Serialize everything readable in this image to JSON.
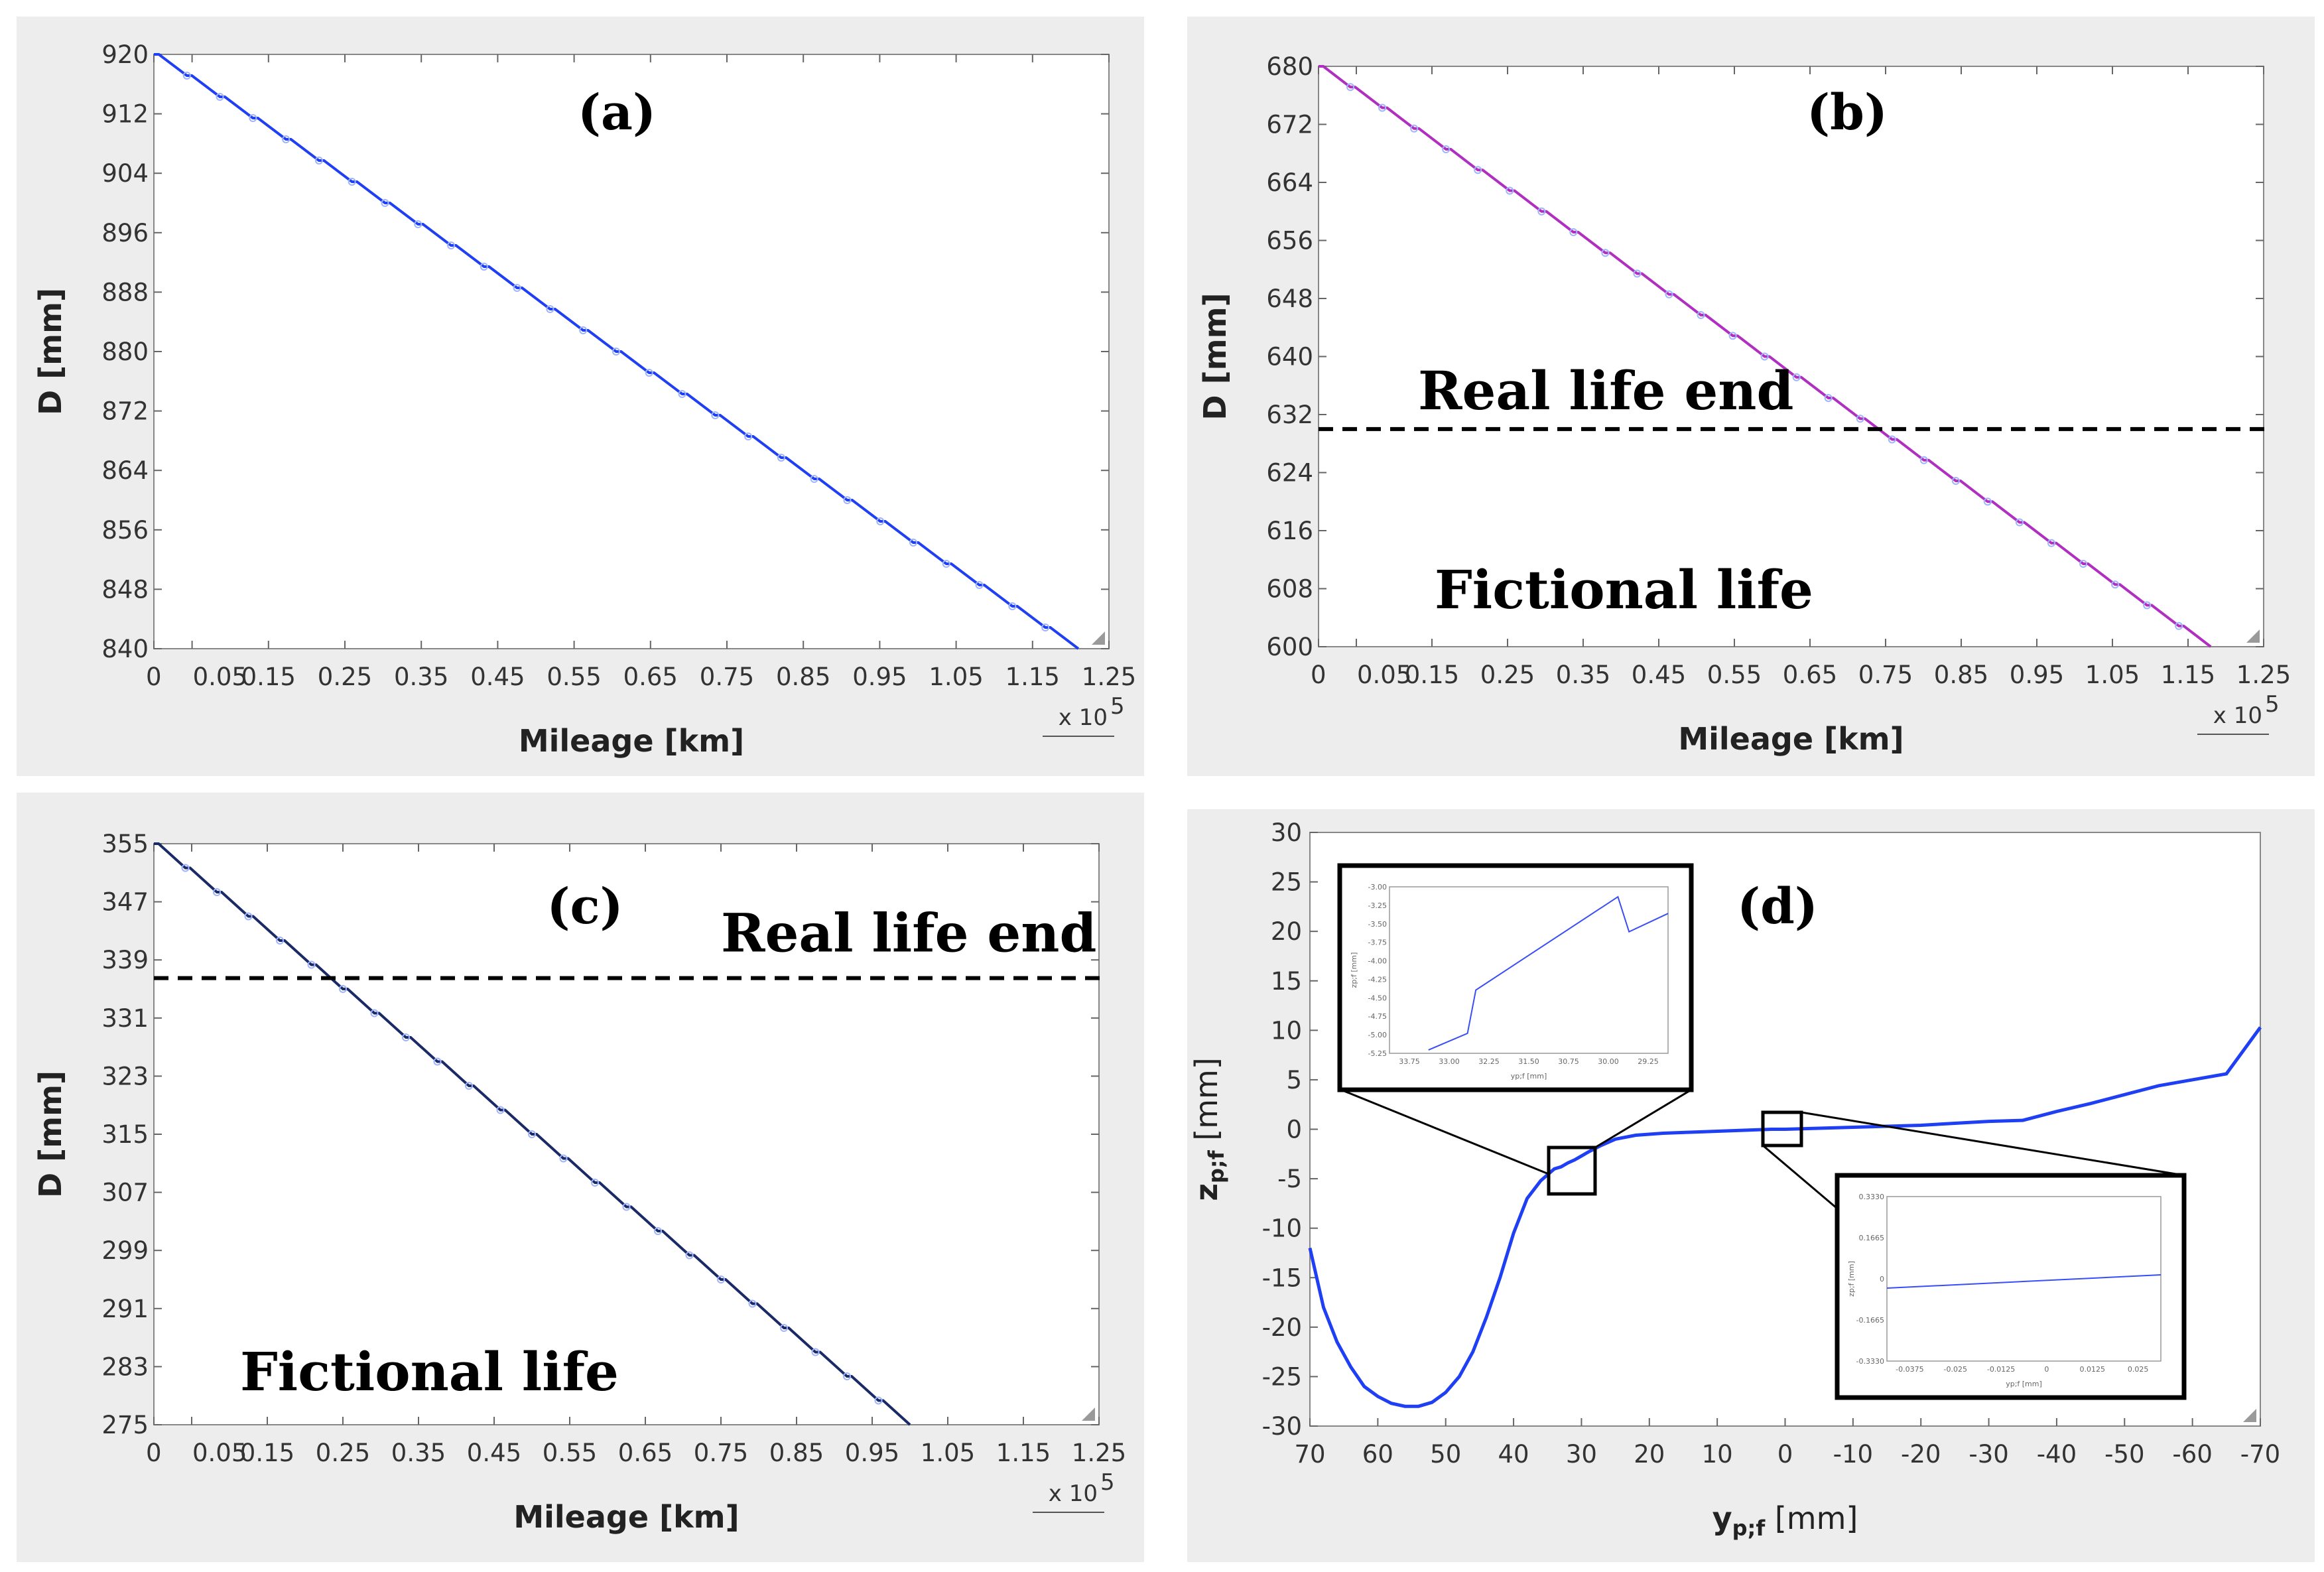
{
  "chart_data": [
    {
      "panel": "a",
      "type": "line",
      "title": "(a)",
      "xlabel": "Mileage [km]",
      "ylabel": "D  [mm]",
      "x_multiplier": "x 10",
      "x_multiplier_exp": "5",
      "xlim": [
        0,
        1.25
      ],
      "ylim": [
        840,
        920
      ],
      "x_ticks": [
        0,
        0.05,
        0.15,
        0.25,
        0.35,
        0.45,
        0.55,
        0.65,
        0.75,
        0.85,
        0.95,
        1.05,
        1.15,
        1.25
      ],
      "x_tick_labels": [
        "0",
        "0.05",
        "0.15",
        "0.25",
        "0.35",
        "0.45",
        "0.55",
        "0.65",
        "0.75",
        "0.85",
        "0.95",
        "1.05",
        "1.15",
        "1.25"
      ],
      "y_ticks": [
        920,
        912,
        904,
        896,
        888,
        880,
        872,
        864,
        856,
        848,
        840
      ],
      "color": "#1f3ff5",
      "series": [
        {
          "x": [
            0,
            1.21
          ],
          "y": [
            920,
            840
          ],
          "steps": 28
        }
      ]
    },
    {
      "panel": "b",
      "type": "line",
      "title": "(b)",
      "xlabel": "Mileage [km]",
      "ylabel": "D  [mm]",
      "x_multiplier": "x 10",
      "x_multiplier_exp": "5",
      "xlim": [
        0,
        1.25
      ],
      "ylim": [
        600,
        680
      ],
      "x_ticks": [
        0,
        0.05,
        0.15,
        0.25,
        0.35,
        0.45,
        0.55,
        0.65,
        0.75,
        0.85,
        0.95,
        1.05,
        1.15,
        1.25
      ],
      "x_tick_labels": [
        "0",
        "0.05",
        "0.15",
        "0.25",
        "0.35",
        "0.45",
        "0.55",
        "0.65",
        "0.75",
        "0.85",
        "0.95",
        "1.05",
        "1.15",
        "1.25"
      ],
      "y_ticks": [
        680,
        672,
        664,
        656,
        648,
        640,
        632,
        624,
        616,
        608,
        600
      ],
      "color": "#b02fc0",
      "series": [
        {
          "x": [
            0,
            1.18
          ],
          "y": [
            680,
            600
          ],
          "steps": 28
        }
      ],
      "hline": 630,
      "labels": {
        "real_life_end": "Real life end",
        "fictional_life": "Fictional life"
      }
    },
    {
      "panel": "c",
      "type": "line",
      "title": "(c)",
      "xlabel": "Mileage [km]",
      "ylabel": "D  [mm]",
      "x_multiplier": "x 10",
      "x_multiplier_exp": "5",
      "xlim": [
        0,
        1.25
      ],
      "ylim": [
        275,
        355
      ],
      "x_ticks": [
        0,
        0.05,
        0.15,
        0.25,
        0.35,
        0.45,
        0.55,
        0.65,
        0.75,
        0.85,
        0.95,
        1.05,
        1.15,
        1.25
      ],
      "x_tick_labels": [
        "0",
        "0.05",
        "0.15",
        "0.25",
        "0.35",
        "0.45",
        "0.55",
        "0.65",
        "0.75",
        "0.85",
        "0.95",
        "1.05",
        "1.15",
        "1.25"
      ],
      "y_ticks": [
        355,
        347,
        339,
        331,
        323,
        315,
        307,
        299,
        291,
        283,
        275
      ],
      "color": "#1a2a66",
      "series": [
        {
          "x": [
            0,
            1.0
          ],
          "y": [
            355,
            275
          ],
          "steps": 24
        }
      ],
      "hline": 336.5,
      "labels": {
        "real_life_end": "Real life end",
        "fictional_life": "Fictional life"
      }
    },
    {
      "panel": "d",
      "type": "line",
      "title": "(d)",
      "xlabel": "y",
      "xlabel_sub": "p;f",
      "xlabel_unit": " [mm]",
      "ylabel": "z",
      "ylabel_sub": "p;f",
      "ylabel_unit": " [mm]",
      "xlim": [
        70,
        -70
      ],
      "ylim": [
        -30,
        30
      ],
      "x_ticks": [
        70,
        60,
        50,
        40,
        30,
        20,
        10,
        0,
        -10,
        -20,
        -30,
        -40,
        -50,
        -60,
        -70
      ],
      "y_ticks": [
        30,
        25,
        20,
        15,
        10,
        5,
        0,
        -5,
        -10,
        -15,
        -20,
        -25,
        -30
      ],
      "color": "#1f3ff5",
      "series": [
        {
          "x": [
            70,
            68,
            66,
            64,
            62,
            60,
            58,
            56,
            54,
            52,
            50,
            48,
            46,
            44,
            42,
            40,
            38,
            36,
            34,
            33,
            32,
            31,
            30,
            29,
            27,
            25,
            22,
            18,
            14,
            10,
            6,
            2,
            0,
            -5,
            -10,
            -15,
            -20,
            -25,
            -30,
            -35,
            -40,
            -45,
            -50,
            -55,
            -60,
            -65,
            -70
          ],
          "y": [
            -12,
            -18,
            -21.5,
            -24,
            -26,
            -27,
            -27.7,
            -28,
            -28,
            -27.6,
            -26.6,
            -25,
            -22.5,
            -19,
            -15,
            -10.5,
            -7,
            -5.2,
            -4,
            -3.8,
            -3.4,
            -3.1,
            -2.7,
            -2.3,
            -1.6,
            -1.0,
            -0.6,
            -0.4,
            -0.3,
            -0.2,
            -0.1,
            0,
            0,
            0.1,
            0.2,
            0.3,
            0.4,
            0.6,
            0.8,
            0.9,
            1.8,
            2.6,
            3.5,
            4.4,
            5.0,
            5.6,
            10.3
          ]
        }
      ],
      "insets": [
        {
          "tick_labels_x": [
            "33.75",
            "33.00",
            "32.25",
            "31.50",
            "30.75",
            "30.00",
            "29.25"
          ],
          "tick_labels_y": [
            "-3.00",
            "-3.25",
            "-3.50",
            "-3.75",
            "-4.00",
            "-4.25",
            "-4.50",
            "-4.75",
            "-5.00",
            "-5.25"
          ],
          "xlabel": "yp;f [mm]",
          "ylabel": "zp;f [mm]"
        },
        {
          "tick_labels_x": [
            "-0.0375",
            "-0.025",
            "-0.0125",
            "0",
            "0.0125",
            "0.025"
          ],
          "tick_labels_y": [
            "0.3330",
            "0.1665",
            "0",
            "-0.1665",
            "-0.3330"
          ],
          "xlabel": "yp;f [mm]",
          "ylabel": "zp;f [mm]"
        }
      ]
    }
  ]
}
